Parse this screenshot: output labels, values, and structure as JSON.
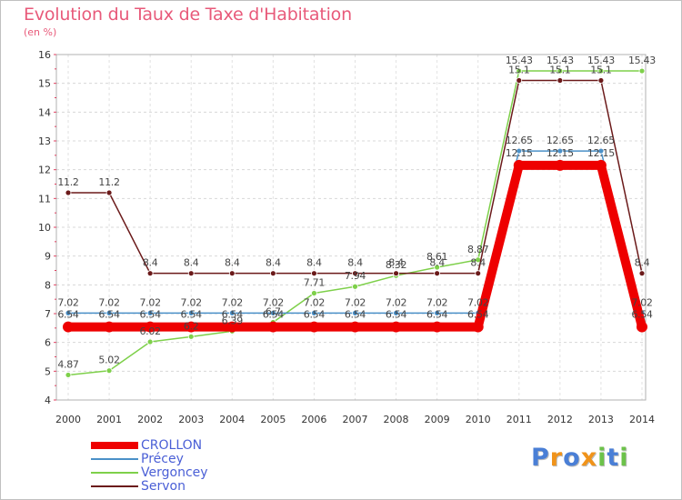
{
  "header": {
    "title": "Evolution du Taux de Taxe d'Habitation",
    "subtitle": "(en %)"
  },
  "brand": {
    "text": "Proxiti",
    "colors": [
      "#4a7fd6",
      "#f0931a",
      "#4a7fd6",
      "#f0931a",
      "#6cc24a",
      "#4a7fd6",
      "#6cc24a"
    ]
  },
  "chart_data": {
    "type": "line",
    "title": "Evolution du Taux de Taxe d'Habitation",
    "ylabel": "(en %)",
    "xlabel": "",
    "ylim": [
      4,
      16
    ],
    "yticks": [
      "4",
      "5",
      "6",
      "7",
      "8",
      "9",
      "10",
      "11",
      "12",
      "13",
      "14",
      "15",
      "16"
    ],
    "categories": [
      "2000",
      "2001",
      "2002",
      "2003",
      "2004",
      "2005",
      "2006",
      "2007",
      "2008",
      "2009",
      "2010",
      "2011",
      "2012",
      "2013",
      "2014"
    ],
    "series": [
      {
        "name": "CROLLON",
        "color": "#ee0000",
        "values": [
          6.54,
          6.54,
          6.54,
          6.54,
          6.54,
          6.54,
          6.54,
          6.54,
          6.54,
          6.54,
          6.54,
          12.15,
          12.15,
          12.15,
          6.54
        ],
        "labels": [
          "6.54",
          "6.54",
          "6.54",
          "6.54",
          "6.54",
          "6.54",
          "6.54",
          "6.54",
          "6.54",
          "6.54",
          "6.54",
          "12.15",
          "12.15",
          "12.15",
          "6.54"
        ]
      },
      {
        "name": "Précey",
        "color": "#4a90c8",
        "values": [
          7.02,
          7.02,
          7.02,
          7.02,
          7.02,
          7.02,
          7.02,
          7.02,
          7.02,
          7.02,
          7.02,
          12.65,
          12.65,
          12.65,
          7.02
        ],
        "labels": [
          "7.02",
          "7.02",
          "7.02",
          "7.02",
          "7.02",
          "7.02",
          "7.02",
          "7.02",
          "7.02",
          "7.02",
          "7.02",
          "12.65",
          "12.65",
          "12.65",
          "7.02"
        ]
      },
      {
        "name": "Vergoncey",
        "color": "#7ed04a",
        "values": [
          4.87,
          5.02,
          6.02,
          6.2,
          6.39,
          6.7,
          7.71,
          7.94,
          8.32,
          8.61,
          8.87,
          15.43,
          15.43,
          15.43,
          15.43
        ],
        "labels": [
          "4.87",
          "5.02",
          "6.02",
          "6.2",
          "6.39",
          "6.7",
          "7.71",
          "7.94",
          "8.32",
          "8.61",
          "8.87",
          "15.43",
          "15.43",
          "15.43",
          "15.43"
        ]
      },
      {
        "name": "Servon",
        "color": "#6b1a1a",
        "values": [
          11.2,
          11.2,
          8.4,
          8.4,
          8.4,
          8.4,
          8.4,
          8.4,
          8.4,
          8.4,
          8.4,
          15.1,
          15.1,
          15.1,
          8.4
        ],
        "labels": [
          "11.2",
          "11.2",
          "8.4",
          "8.4",
          "8.4",
          "8.4",
          "8.4",
          "8.4",
          "8.4",
          "8.4",
          "8.4",
          "15.1",
          "15.1",
          "15.1",
          "8.4"
        ]
      }
    ],
    "legend_position": "bottom-left"
  }
}
